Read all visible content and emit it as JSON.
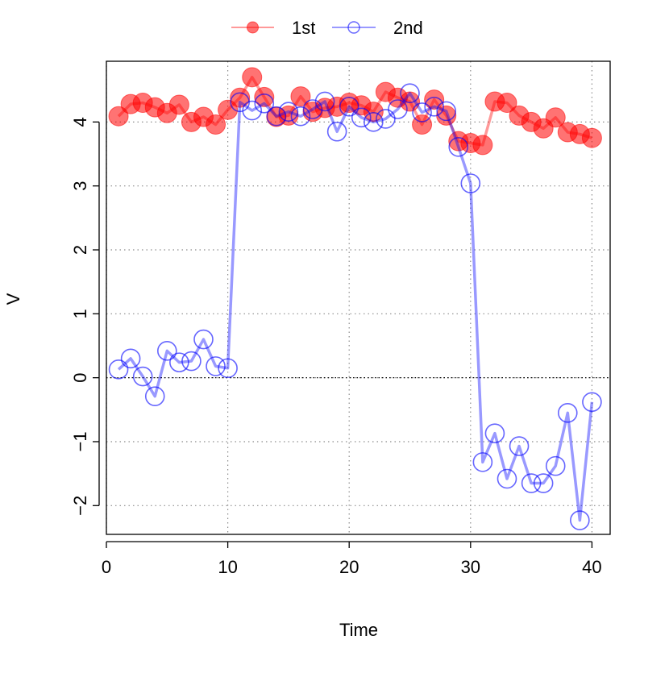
{
  "chart_data": {
    "type": "line",
    "title": "",
    "xlabel": "Time",
    "ylabel": "V",
    "xlim": [
      0,
      41.5
    ],
    "ylim": [
      -2.45,
      4.95
    ],
    "x_ticks": [
      0,
      10,
      20,
      30,
      40
    ],
    "y_ticks": [
      -2,
      -1,
      0,
      1,
      2,
      3,
      4
    ],
    "x_tick_labels": [
      "0",
      "10",
      "20",
      "30",
      "40"
    ],
    "y_tick_labels": [
      "−2",
      "−1",
      "0",
      "1",
      "2",
      "3",
      "4"
    ],
    "grid": true,
    "legend_position": "top-center",
    "x": [
      1,
      2,
      3,
      4,
      5,
      6,
      7,
      8,
      9,
      10,
      11,
      12,
      13,
      14,
      15,
      16,
      17,
      18,
      19,
      20,
      21,
      22,
      23,
      24,
      25,
      26,
      27,
      28,
      29,
      30,
      31,
      32,
      33,
      34,
      35,
      36,
      37,
      38,
      39,
      40
    ],
    "series": [
      {
        "name": "1st",
        "color": "#ff0000",
        "marker": "filled-circle",
        "values": [
          4.09,
          4.28,
          4.3,
          4.23,
          4.14,
          4.27,
          4.0,
          4.08,
          3.96,
          4.19,
          4.38,
          4.7,
          4.39,
          4.08,
          4.1,
          4.4,
          4.16,
          4.22,
          4.24,
          4.3,
          4.26,
          4.16,
          4.47,
          4.38,
          4.32,
          3.96,
          4.35,
          4.1,
          3.7,
          3.67,
          3.64,
          4.32,
          4.3,
          4.1,
          4.0,
          3.9,
          4.07,
          3.84,
          3.81,
          3.75
        ]
      },
      {
        "name": "2nd",
        "color": "#0000ff",
        "marker": "open-circle",
        "values": [
          0.13,
          0.3,
          0.02,
          -0.29,
          0.42,
          0.24,
          0.26,
          0.6,
          0.18,
          0.15,
          4.31,
          4.18,
          4.29,
          4.09,
          4.16,
          4.09,
          4.2,
          4.32,
          3.85,
          4.24,
          4.07,
          4.0,
          4.05,
          4.2,
          4.45,
          4.15,
          4.24,
          4.17,
          3.61,
          3.04,
          -1.32,
          -0.87,
          -1.58,
          -1.07,
          -1.65,
          -1.65,
          -1.38,
          -0.55,
          -2.23,
          -0.38
        ]
      }
    ]
  }
}
